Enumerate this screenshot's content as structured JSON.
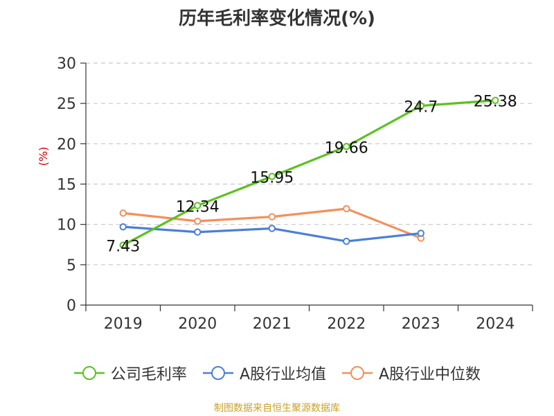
{
  "chart_data": {
    "type": "line",
    "title": "历年毛利率变化情况(%)",
    "ylabel": "(%)",
    "xlabel": "",
    "categories": [
      "2019",
      "2020",
      "2021",
      "2022",
      "2023",
      "2024"
    ],
    "ylim": [
      0,
      30
    ],
    "yticks": [
      0,
      5,
      10,
      15,
      20,
      25,
      30
    ],
    "grid": true,
    "legend_position": "bottom",
    "series": [
      {
        "name": "公司毛利率",
        "color": "#5ac21f",
        "values": [
          7.43,
          12.34,
          15.95,
          19.66,
          24.7,
          25.38
        ],
        "labels": [
          "7.43",
          "12.34",
          "15.95",
          "19.66",
          "24.7",
          "25.38"
        ]
      },
      {
        "name": "A股行业均值",
        "color": "#4a7fd8",
        "values": [
          9.7,
          9.05,
          9.5,
          7.9,
          8.9,
          null
        ]
      },
      {
        "name": "A股行业中位数",
        "color": "#f58f5a",
        "values": [
          11.4,
          10.4,
          10.95,
          11.95,
          8.3,
          null
        ]
      }
    ]
  },
  "footer": {
    "source": "制图数据来自恒生聚源数据库"
  }
}
